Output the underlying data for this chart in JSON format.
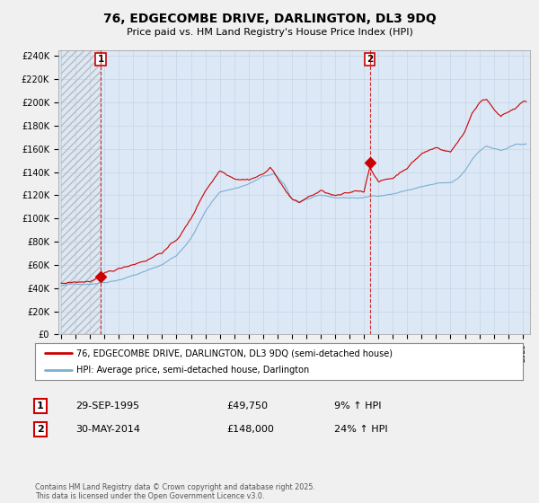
{
  "title": "76, EDGECOMBE DRIVE, DARLINGTON, DL3 9DQ",
  "subtitle": "Price paid vs. HM Land Registry's House Price Index (HPI)",
  "ylim": [
    0,
    245000
  ],
  "ytick_labels": [
    "£0",
    "£20K",
    "£40K",
    "£60K",
    "£80K",
    "£100K",
    "£120K",
    "£140K",
    "£160K",
    "£180K",
    "£200K",
    "£220K",
    "£240K"
  ],
  "ytick_values": [
    0,
    20000,
    40000,
    60000,
    80000,
    100000,
    120000,
    140000,
    160000,
    180000,
    200000,
    220000,
    240000
  ],
  "bg_color": "#f0f0f0",
  "plot_bg_color": "#dce8f5",
  "line1_color": "#cc0000",
  "line2_color": "#7aafd4",
  "marker_color": "#cc0000",
  "sale1_x": 1995.75,
  "sale1_y": 49750,
  "sale2_x": 2014.41,
  "sale2_y": 148000,
  "vline1_x": 1995.75,
  "vline2_x": 2014.41,
  "legend_line1": "76, EDGECOMBE DRIVE, DARLINGTON, DL3 9DQ (semi-detached house)",
  "legend_line2": "HPI: Average price, semi-detached house, Darlington",
  "annotation1_num": "1",
  "annotation1_date": "29-SEP-1995",
  "annotation1_price": "£49,750",
  "annotation1_hpi": "9% ↑ HPI",
  "annotation2_num": "2",
  "annotation2_date": "30-MAY-2014",
  "annotation2_price": "£148,000",
  "annotation2_hpi": "24% ↑ HPI",
  "footer": "Contains HM Land Registry data © Crown copyright and database right 2025.\nThis data is licensed under the Open Government Licence v3.0.",
  "xmin": 1993.0,
  "xmax": 2025.5
}
